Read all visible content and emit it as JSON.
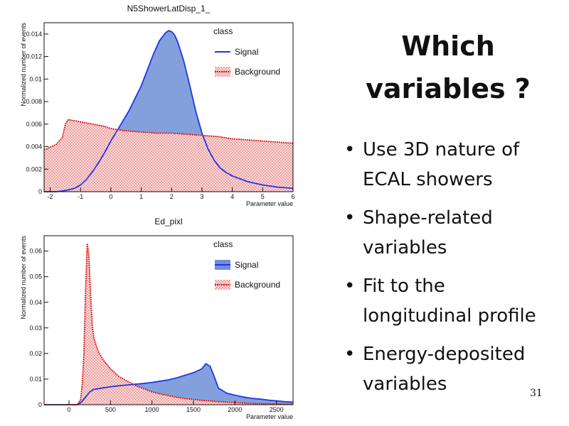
{
  "slide": {
    "heading_line1": "Which",
    "heading_line2": "variables ?",
    "bullets": [
      "Use 3D nature of ECAL showers",
      "Shape-related variables",
      "Fit to the longitudinal profile",
      "Energy-deposited variables"
    ],
    "page_number": "31"
  },
  "chart_data": [
    {
      "type": "area",
      "title": "N5ShowerLatDisp_1_",
      "xlabel": "Parameter value",
      "ylabel": "Normalized number of events",
      "xlim": [
        -2.2,
        6
      ],
      "ylim": [
        0,
        0.015
      ],
      "xticks": [
        -2,
        -1,
        0,
        1,
        2,
        3,
        4,
        5,
        6
      ],
      "yticks": [
        0,
        0.002,
        0.004,
        0.006,
        0.008,
        0.01,
        0.012,
        0.014
      ],
      "ytick_labels": [
        "0",
        "0.002",
        "0.004",
        "0.006",
        "0.008",
        "0.01",
        "0.012",
        "0.014"
      ],
      "legend": {
        "title": "class",
        "position": "top-right",
        "entries": [
          "Signal",
          "Background"
        ]
      },
      "series": [
        {
          "name": "Signal",
          "color": "#1f36e8",
          "fill": "#6f8fd6",
          "x": [
            -2.2,
            -1.8,
            -1.5,
            -1.2,
            -1.0,
            -0.8,
            -0.6,
            -0.4,
            -0.2,
            0.0,
            0.2,
            0.4,
            0.6,
            0.8,
            1.0,
            1.2,
            1.4,
            1.6,
            1.8,
            1.9,
            2.0,
            2.1,
            2.2,
            2.4,
            2.6,
            2.8,
            3.0,
            3.2,
            3.4,
            3.6,
            3.8,
            4.0,
            4.5,
            5.0,
            5.5,
            6.0
          ],
          "values": [
            0.0,
            0.0,
            0.0001,
            0.0003,
            0.0006,
            0.0011,
            0.0018,
            0.0026,
            0.0035,
            0.0045,
            0.0054,
            0.0063,
            0.0072,
            0.0083,
            0.0094,
            0.0108,
            0.0122,
            0.0134,
            0.0141,
            0.0143,
            0.0142,
            0.0139,
            0.0133,
            0.0116,
            0.0094,
            0.0071,
            0.0052,
            0.0038,
            0.0028,
            0.0021,
            0.0017,
            0.0014,
            0.0009,
            0.0006,
            0.0004,
            0.0003
          ]
        },
        {
          "name": "Background",
          "color": "#e01818",
          "fill": "#f3c9c9",
          "x": [
            -2.2,
            -1.8,
            -1.6,
            -1.5,
            -1.4,
            -1.2,
            -1.0,
            -0.8,
            -0.6,
            -0.4,
            -0.2,
            0.0,
            0.5,
            1.0,
            1.5,
            2.0,
            2.5,
            3.0,
            3.5,
            4.0,
            4.5,
            5.0,
            5.5,
            6.0
          ],
          "values": [
            0.0037,
            0.0042,
            0.0048,
            0.006,
            0.0064,
            0.0063,
            0.0062,
            0.0061,
            0.006,
            0.0059,
            0.0058,
            0.0056,
            0.0054,
            0.0053,
            0.0052,
            0.0052,
            0.0051,
            0.005,
            0.0049,
            0.0047,
            0.0046,
            0.0045,
            0.0044,
            0.0043
          ]
        }
      ]
    },
    {
      "type": "area",
      "title": "Ed_pixl",
      "xlabel": "Parameter value",
      "ylabel": "Normalized number of events",
      "xlim": [
        -300,
        2700
      ],
      "ylim": [
        0,
        0.066
      ],
      "xticks": [
        0,
        500,
        1000,
        1500,
        2000,
        2500
      ],
      "yticks": [
        0,
        0.01,
        0.02,
        0.03,
        0.04,
        0.05,
        0.06
      ],
      "ytick_labels": [
        "0",
        "0.01",
        "0.02",
        "0.03",
        "0.04",
        "0.05",
        "0.06"
      ],
      "legend": {
        "title": "class",
        "position": "top-right",
        "entries": [
          "Signal",
          "Background"
        ]
      },
      "series": [
        {
          "name": "Signal",
          "color": "#1f36e8",
          "fill": "#6f8fd6",
          "x": [
            -300,
            100,
            150,
            200,
            250,
            300,
            400,
            500,
            600,
            700,
            800,
            900,
            1000,
            1100,
            1200,
            1300,
            1400,
            1500,
            1600,
            1650,
            1700,
            1750,
            1800,
            1900,
            2000,
            2100,
            2200,
            2300,
            2400,
            2500,
            2600,
            2700
          ],
          "values": [
            0.0,
            0.0,
            0.001,
            0.003,
            0.005,
            0.006,
            0.0065,
            0.007,
            0.0074,
            0.0077,
            0.008,
            0.0083,
            0.0087,
            0.0092,
            0.0097,
            0.0105,
            0.0115,
            0.0125,
            0.014,
            0.016,
            0.015,
            0.011,
            0.0065,
            0.0045,
            0.0037,
            0.003,
            0.0025,
            0.0022,
            0.0018,
            0.0015,
            0.0012,
            0.001
          ]
        },
        {
          "name": "Background",
          "color": "#e01818",
          "fill": "#f3c9c9",
          "x": [
            -300,
            100,
            140,
            160,
            180,
            200,
            220,
            240,
            260,
            280,
            300,
            350,
            400,
            500,
            600,
            800,
            1000,
            1200,
            1400,
            1600,
            1800,
            2000,
            2200,
            2500,
            2700
          ],
          "values": [
            0.0,
            0.0,
            0.002,
            0.008,
            0.02,
            0.045,
            0.063,
            0.058,
            0.043,
            0.031,
            0.026,
            0.021,
            0.018,
            0.014,
            0.011,
            0.0075,
            0.005,
            0.0035,
            0.0024,
            0.0017,
            0.0012,
            0.0008,
            0.0005,
            0.0003,
            0.0002
          ]
        }
      ]
    }
  ]
}
